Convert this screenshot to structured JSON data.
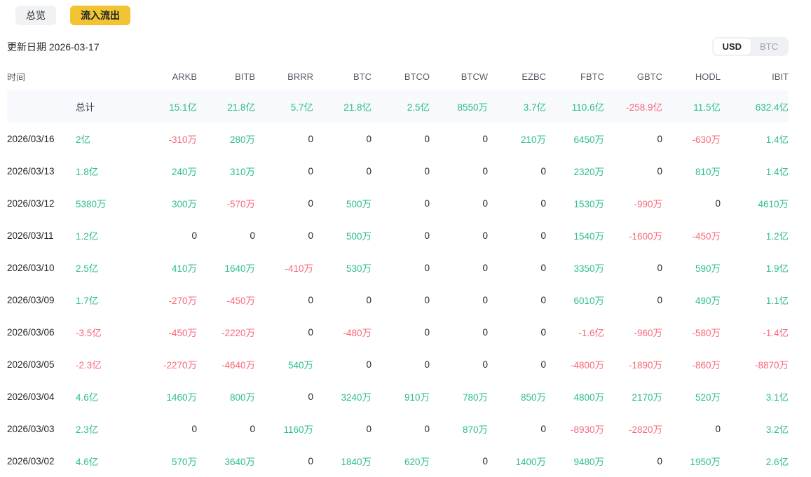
{
  "tabs": [
    {
      "label": "总览",
      "active": false
    },
    {
      "label": "流入流出",
      "active": true
    }
  ],
  "update_date": "更新日期 2026-03-17",
  "currency_toggle": {
    "options": [
      "USD",
      "BTC"
    ],
    "selected": "USD"
  },
  "table": {
    "time_header": "时间",
    "total_label": "总计",
    "etf_headers": [
      "ARKB",
      "BITB",
      "BRRR",
      "BTC",
      "BTCO",
      "BTCW",
      "EZBC",
      "FBTC",
      "GBTC",
      "HODL",
      "IBIT"
    ],
    "total_row": [
      "15.1亿",
      "21.8亿",
      "5.7亿",
      "21.8亿",
      "2.5亿",
      "8550万",
      "3.7亿",
      "110.6亿",
      "-258.9亿",
      "11.5亿",
      "632.4亿"
    ],
    "rows": [
      {
        "date": "2026/03/16",
        "daily_total": "2亿",
        "values": [
          "-310万",
          "280万",
          "0",
          "0",
          "0",
          "0",
          "210万",
          "6450万",
          "0",
          "-630万",
          "1.4亿"
        ]
      },
      {
        "date": "2026/03/13",
        "daily_total": "1.8亿",
        "values": [
          "240万",
          "310万",
          "0",
          "0",
          "0",
          "0",
          "0",
          "2320万",
          "0",
          "810万",
          "1.4亿"
        ]
      },
      {
        "date": "2026/03/12",
        "daily_total": "5380万",
        "values": [
          "300万",
          "-570万",
          "0",
          "500万",
          "0",
          "0",
          "0",
          "1530万",
          "-990万",
          "0",
          "4610万"
        ]
      },
      {
        "date": "2026/03/11",
        "daily_total": "1.2亿",
        "values": [
          "0",
          "0",
          "0",
          "500万",
          "0",
          "0",
          "0",
          "1540万",
          "-1600万",
          "-450万",
          "1.2亿"
        ]
      },
      {
        "date": "2026/03/10",
        "daily_total": "2.5亿",
        "values": [
          "410万",
          "1640万",
          "-410万",
          "530万",
          "0",
          "0",
          "0",
          "3350万",
          "0",
          "590万",
          "1.9亿"
        ]
      },
      {
        "date": "2026/03/09",
        "daily_total": "1.7亿",
        "values": [
          "-270万",
          "-450万",
          "0",
          "0",
          "0",
          "0",
          "0",
          "6010万",
          "0",
          "490万",
          "1.1亿"
        ]
      },
      {
        "date": "2026/03/06",
        "daily_total": "-3.5亿",
        "values": [
          "-450万",
          "-2220万",
          "0",
          "-480万",
          "0",
          "0",
          "0",
          "-1.6亿",
          "-960万",
          "-580万",
          "-1.4亿"
        ]
      },
      {
        "date": "2026/03/05",
        "daily_total": "-2.3亿",
        "values": [
          "-2270万",
          "-4640万",
          "540万",
          "0",
          "0",
          "0",
          "0",
          "-4800万",
          "-1890万",
          "-860万",
          "-8870万"
        ]
      },
      {
        "date": "2026/03/04",
        "daily_total": "4.6亿",
        "values": [
          "1460万",
          "800万",
          "0",
          "3240万",
          "910万",
          "780万",
          "850万",
          "4800万",
          "2170万",
          "520万",
          "3.1亿"
        ]
      },
      {
        "date": "2026/03/03",
        "daily_total": "2.3亿",
        "values": [
          "0",
          "0",
          "1160万",
          "0",
          "0",
          "870万",
          "0",
          "-8930万",
          "-2820万",
          "0",
          "3.2亿"
        ]
      },
      {
        "date": "2026/03/02",
        "daily_total": "4.6亿",
        "values": [
          "570万",
          "3640万",
          "0",
          "1840万",
          "620万",
          "0",
          "1400万",
          "9480万",
          "0",
          "1950万",
          "2.6亿"
        ]
      }
    ]
  },
  "colors": {
    "positive": "#2ebd8e",
    "negative": "#f8697a",
    "neutral": "#23272e",
    "tab_active_bg": "#f2c434",
    "total_row_bg": "#f7f9fd"
  }
}
